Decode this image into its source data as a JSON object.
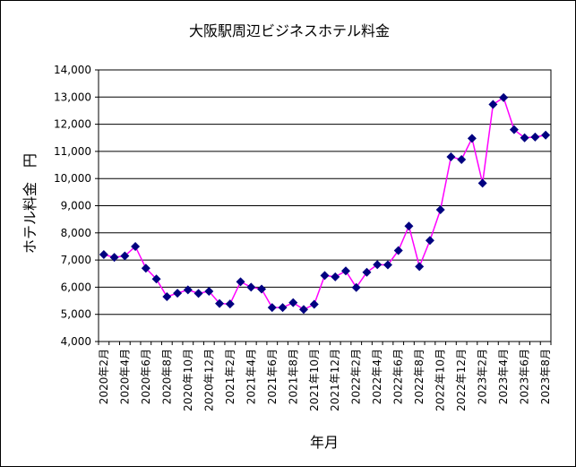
{
  "chart_data": {
    "type": "line",
    "title": "大阪駅周辺ビジネスホテル料金",
    "xlabel": "年月",
    "ylabel": "ホテル料金　円",
    "ylim": [
      4000,
      14000
    ],
    "y_ticks": [
      "4,000",
      "5,000",
      "6,000",
      "7,000",
      "8,000",
      "9,000",
      "10,000",
      "11,000",
      "12,000",
      "13,000",
      "14,000"
    ],
    "grid": true,
    "legend": "none",
    "colors": {
      "line": "#ff00ff",
      "marker": "#000080",
      "grid": "#000000",
      "frame": "#000000"
    },
    "x_tick_labels": [
      "2020年2月",
      "2020年4月",
      "2020年6月",
      "2020年8月",
      "2020年10月",
      "2020年12月",
      "2021年2月",
      "2021年4月",
      "2021年6月",
      "2021年8月",
      "2021年10月",
      "2021年12月",
      "2022年2月",
      "2022年4月",
      "2022年6月",
      "2022年8月",
      "2022年10月",
      "2022年12月",
      "2023年2月",
      "2023年4月",
      "2023年6月",
      "2023年8月"
    ],
    "x": [
      "2020-02",
      "2020-03",
      "2020-04",
      "2020-05",
      "2020-06",
      "2020-07",
      "2020-08",
      "2020-09",
      "2020-10",
      "2020-11",
      "2020-12",
      "2021-01",
      "2021-02",
      "2021-03",
      "2021-04",
      "2021-05",
      "2021-06",
      "2021-07",
      "2021-08",
      "2021-09",
      "2021-10",
      "2021-11",
      "2021-12",
      "2022-01",
      "2022-02",
      "2022-03",
      "2022-04",
      "2022-05",
      "2022-06",
      "2022-07",
      "2022-08",
      "2022-09",
      "2022-10",
      "2022-11",
      "2022-12",
      "2023-01",
      "2023-02",
      "2023-03",
      "2023-04",
      "2023-05",
      "2023-06",
      "2023-07",
      "2023-08"
    ],
    "series": [
      {
        "values": [
          7200,
          7100,
          7150,
          7500,
          6700,
          6300,
          5650,
          5780,
          5900,
          5770,
          5850,
          5400,
          5380,
          6200,
          6000,
          5930,
          5250,
          5250,
          5430,
          5180,
          5370,
          6430,
          6380,
          6600,
          5990,
          6550,
          6830,
          6820,
          7350,
          8250,
          6760,
          7720,
          8850,
          10800,
          10700,
          11480,
          9830,
          12730,
          12980,
          11800,
          11500,
          11530,
          11600
        ]
      }
    ]
  }
}
